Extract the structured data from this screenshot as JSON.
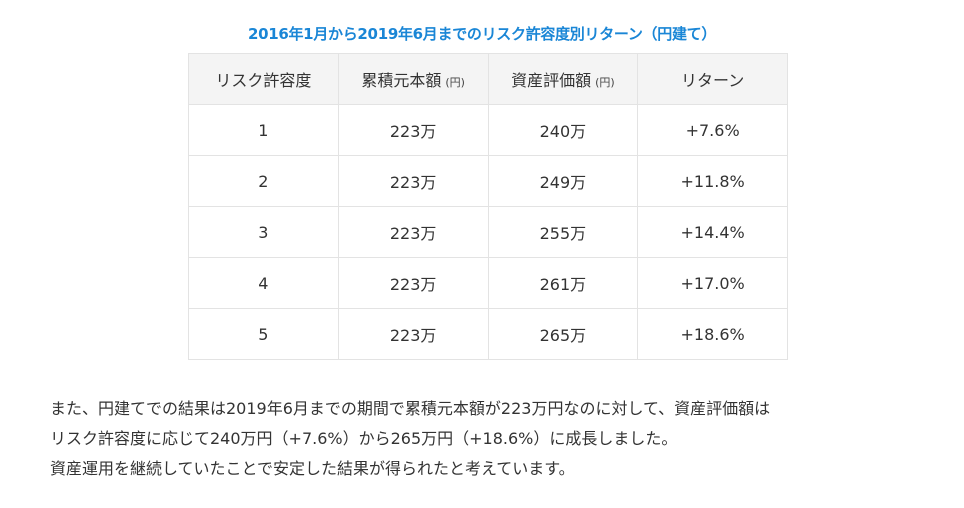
{
  "caption": "2016年1月から2019年6月までのリスク許容度別リターン（円建て）",
  "table": {
    "headers": [
      {
        "label": "リスク許容度",
        "unit": ""
      },
      {
        "label": "累積元本額",
        "unit": "(円)"
      },
      {
        "label": "資産評価額",
        "unit": "(円)"
      },
      {
        "label": "リターン",
        "unit": ""
      }
    ],
    "rows": [
      [
        "1",
        "223万",
        "240万",
        "+7.6%"
      ],
      [
        "2",
        "223万",
        "249万",
        "+11.8%"
      ],
      [
        "3",
        "223万",
        "255万",
        "+14.4%"
      ],
      [
        "4",
        "223万",
        "261万",
        "+17.0%"
      ],
      [
        "5",
        "223万",
        "265万",
        "+18.6%"
      ]
    ]
  },
  "paragraph": [
    "また、円建てでの結果は2019年6月までの期間で累積元本額が223万円なのに対して、資産評価額は",
    "リスク許容度に応じて240万円（+7.6%）から265万円（+18.6%）に成長しました。",
    "資産運用を継続していたことで安定した結果が得られたと考えています。"
  ]
}
